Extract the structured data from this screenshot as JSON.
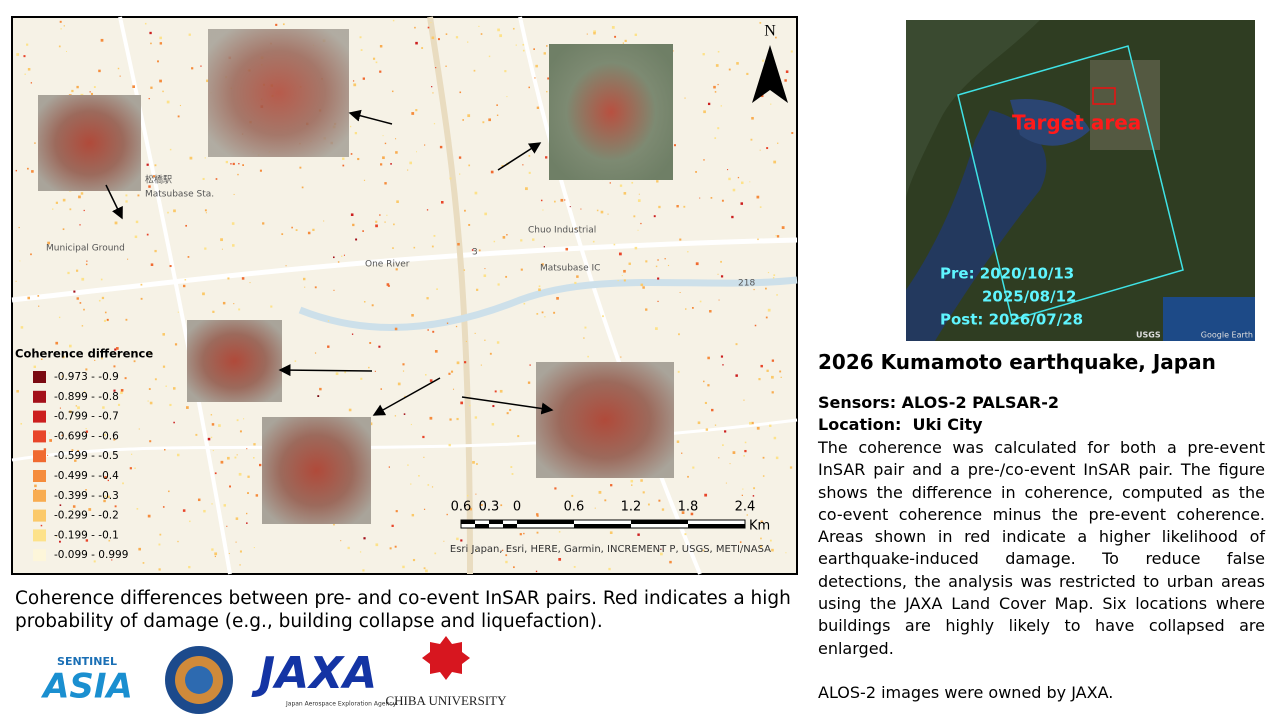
{
  "map": {
    "north": "N",
    "labels": [
      "松橋駅",
      "Matsubase Sta.",
      "One River",
      "Matsubase IC",
      "Chuo Industrial",
      "Municipal Ground",
      "218",
      "3"
    ],
    "legend": {
      "title": "Coherence difference",
      "items": [
        {
          "label": "-0.973 - -0.9",
          "color": "#7a0a12"
        },
        {
          "label": "-0.899 - -0.8",
          "color": "#a3101a"
        },
        {
          "label": "-0.799 - -0.7",
          "color": "#cc1f1f"
        },
        {
          "label": "-0.699 - -0.6",
          "color": "#e8452a"
        },
        {
          "label": "-0.599 - -0.5",
          "color": "#f06a30"
        },
        {
          "label": "-0.499 - -0.4",
          "color": "#f58c3c"
        },
        {
          "label": "-0.399 - -0.3",
          "color": "#f8ac50"
        },
        {
          "label": "-0.299 - -0.2",
          "color": "#fbc969"
        },
        {
          "label": "-0.199 - -0.1",
          "color": "#fde28a"
        },
        {
          "label": "-0.099 - 0.999",
          "color": "#fdf6da"
        }
      ]
    },
    "scale": {
      "ticks": [
        "0.6",
        "0.3",
        "0",
        "0.6",
        "1.2",
        "1.8",
        "2.4"
      ],
      "unit": "Km"
    },
    "attribution": "Esri Japan, Esri, HERE, Garmin, INCREMENT P, USGS, METI/NASA"
  },
  "inset": {
    "target": "Target area",
    "pre": "Pre: 2020/10/13",
    "mid": "2025/08/12",
    "post": "Post: 2026/07/28",
    "credit": "Google Earth",
    "usgs": "USGS"
  },
  "caption": "Coherence differences between pre- and co-event InSAR pairs. Red indicates a high probability of damage (e.g., building collapse and liquefaction).",
  "description": {
    "title": "2026 Kumamoto earthquake, Japan",
    "sensors": "Sensors: ALOS-2 PALSAR-2",
    "location": "Location:  Uki City",
    "body": "The coherence was calculated for both a pre-event InSAR pair and a pre-/co-event InSAR pair. The figure shows the difference in coherence, computed as the co-event coherence minus the pre-event coherence. Areas shown in red indicate a higher likelihood of earthquake-induced damage. To reduce false detections, the analysis was restricted to urban areas using the JAXA Land Cover Map. Six locations where buildings are highly likely to have collapsed are enlarged.",
    "owner": "ALOS-2 images were owned by JAXA."
  },
  "logos": {
    "sentinel": "SENTINEL",
    "asia": "ASIA",
    "jaxa": "JAXA",
    "jaxa_sub": "Japan Aerospace Exploration Agency",
    "chiba": "CHIBA UNIVERSITY"
  }
}
